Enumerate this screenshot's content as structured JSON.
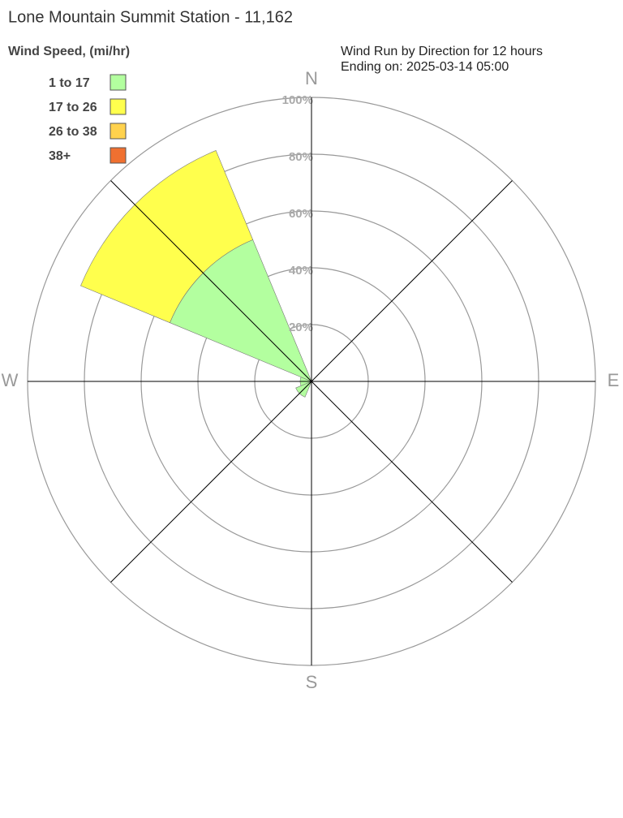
{
  "chart_data": {
    "type": "windrose",
    "title": "Lone Mountain Summit Station - 11,162",
    "legend_title": "Wind Speed, (mi/hr)",
    "subtitle": [
      "Wind Run by Direction for 12 hours",
      "Ending on: 2025-03-14 05:00"
    ],
    "categories": [
      "N",
      null,
      "E",
      null,
      "S",
      null,
      "W",
      null
    ],
    "series": [
      {
        "name": "1 to 17",
        "color": "#b3ff9f",
        "values": [
          0,
          0,
          0,
          0,
          0,
          6,
          4,
          54
        ]
      },
      {
        "name": "17 to 26",
        "color": "#ffff4d",
        "values": [
          0,
          0,
          0,
          0,
          0,
          0,
          0,
          34
        ]
      },
      {
        "name": "26 to 38",
        "color": "#ffd24d",
        "values": [
          0,
          0,
          0,
          0,
          0,
          0,
          0,
          0
        ]
      },
      {
        "name": "38+",
        "color": "#f07030",
        "values": [
          0,
          0,
          0,
          0,
          0,
          0,
          0,
          0
        ]
      }
    ],
    "rlim": [
      0,
      100
    ],
    "rticks": [
      {
        "value": 20,
        "label": "20%"
      },
      {
        "value": 40,
        "label": "40%"
      },
      {
        "value": 60,
        "label": "60%"
      },
      {
        "value": 80,
        "label": "80%"
      },
      {
        "value": 100,
        "label": "100%"
      }
    ],
    "grid": true
  }
}
